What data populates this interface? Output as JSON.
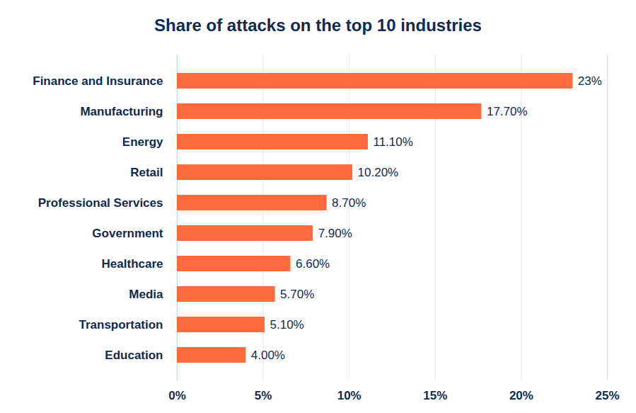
{
  "chart_data": {
    "type": "bar",
    "title": "Share of attacks on the top 10 industries",
    "orientation": "horizontal",
    "categories": [
      "Finance and Insurance",
      "Manufacturing",
      "Energy",
      "Retail",
      "Professional Services",
      "Government",
      "Healthcare",
      "Media",
      "Transportation",
      "Education"
    ],
    "values": [
      23,
      17.7,
      11.1,
      10.2,
      8.7,
      7.9,
      6.6,
      5.7,
      5.1,
      4.0
    ],
    "value_labels": [
      "23%",
      "17.70%",
      "11.10%",
      "10.20%",
      "8.70%",
      "7.90%",
      "6.60%",
      "5.70%",
      "5.10%",
      "4.00%"
    ],
    "data_labels": true,
    "color": "#ff6b3d",
    "xlim": [
      0,
      25
    ],
    "xticks": [
      {
        "value": 0,
        "label": "0%"
      },
      {
        "value": 5,
        "label": "5%"
      },
      {
        "value": 10,
        "label": "10%"
      },
      {
        "value": 15,
        "label": "15%"
      },
      {
        "value": 20,
        "label": "20%"
      },
      {
        "value": 25,
        "label": "25%"
      }
    ],
    "grid": true
  }
}
